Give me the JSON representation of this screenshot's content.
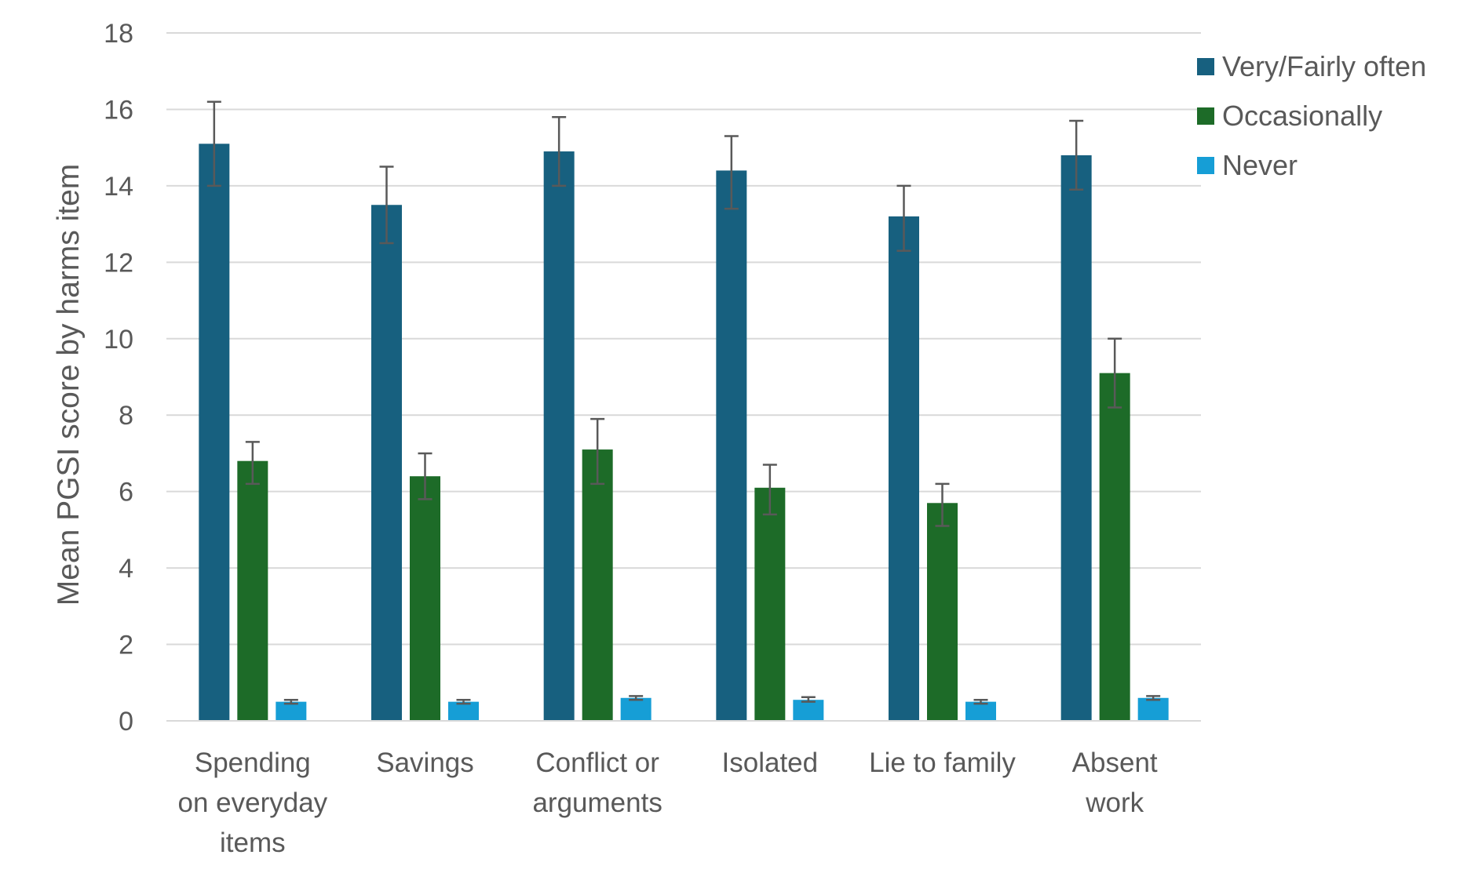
{
  "colors": {
    "very_fairly_often": "#17607f",
    "occasionally": "#1d6b28",
    "never": "#169ed6",
    "gridline": "#d9d9d9",
    "axis_line": "#d9d9d9",
    "error_bar": "#595959",
    "text": "#595959"
  },
  "chart_data": {
    "type": "bar",
    "title": "",
    "xlabel": "",
    "ylabel": "Mean PGSI score by harms item",
    "ylim": [
      0,
      18
    ],
    "yticks": [
      0,
      2,
      4,
      6,
      8,
      10,
      12,
      14,
      16,
      18
    ],
    "grid": true,
    "legend_position": "top-right",
    "categories": [
      [
        "Spending",
        "on everyday",
        "items"
      ],
      [
        "Savings"
      ],
      [
        "Conflict or",
        "arguments"
      ],
      [
        "Isolated"
      ],
      [
        "Lie to family"
      ],
      [
        "Absent",
        "work"
      ]
    ],
    "series": [
      {
        "name": "Very/Fairly often",
        "color_key": "very_fairly_often",
        "values": [
          15.1,
          13.5,
          14.9,
          14.4,
          13.2,
          14.8
        ],
        "error_low": [
          14.0,
          12.5,
          14.0,
          13.4,
          12.3,
          13.9
        ],
        "error_high": [
          16.2,
          14.5,
          15.8,
          15.3,
          14.0,
          15.7
        ]
      },
      {
        "name": "Occasionally",
        "color_key": "occasionally",
        "values": [
          6.8,
          6.4,
          7.1,
          6.1,
          5.7,
          9.1
        ],
        "error_low": [
          6.2,
          5.8,
          6.2,
          5.4,
          5.1,
          8.2
        ],
        "error_high": [
          7.3,
          7.0,
          7.9,
          6.7,
          6.2,
          10.0
        ]
      },
      {
        "name": "Never",
        "color_key": "never",
        "values": [
          0.5,
          0.5,
          0.6,
          0.55,
          0.5,
          0.6
        ],
        "error_low": [
          0.45,
          0.45,
          0.55,
          0.5,
          0.45,
          0.55
        ],
        "error_high": [
          0.55,
          0.55,
          0.65,
          0.62,
          0.55,
          0.65
        ]
      }
    ]
  }
}
